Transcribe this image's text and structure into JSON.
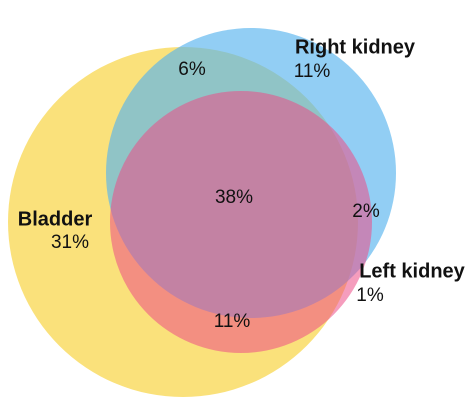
{
  "sets": [
    {
      "label": "Bladder",
      "value_label": "31%"
    },
    {
      "label": "Right kidney",
      "value_label": "11%"
    },
    {
      "label": "Left kidney",
      "value_label": "1%"
    }
  ],
  "overlaps": {
    "bladder_right_kidney": "6%",
    "all_three": "38%",
    "right_kidney_left_kidney": "2%",
    "bladder_left_kidney": "11%"
  }
}
